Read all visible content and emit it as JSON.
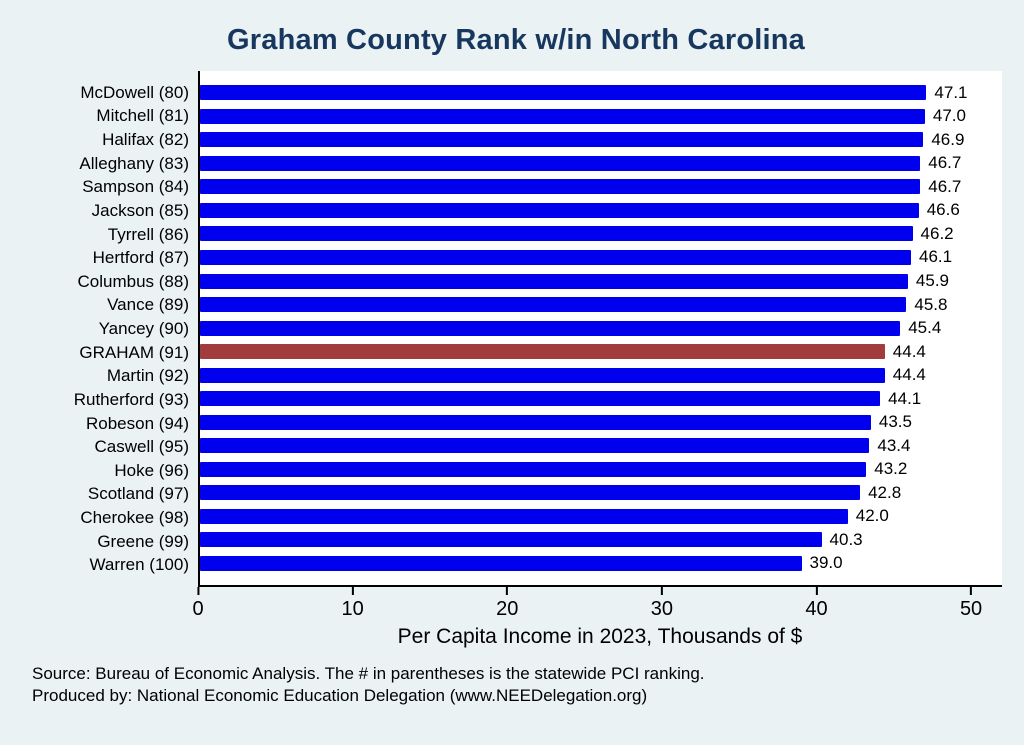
{
  "title": "Graham County Rank w/in North Carolina",
  "footer": {
    "source_line": "Source: Bureau of Economic Analysis. The # in parentheses is the statewide PCI ranking.",
    "produced_line": "Produced by: National Economic Education Delegation (www.NEEDelegation.org)"
  },
  "colors": {
    "background": "#eaf2f3",
    "plot_background": "#ffffff",
    "title": "#17375e",
    "bar": "#0000ee",
    "highlight_bar": "#a23b3b",
    "axis": "#000000"
  },
  "chart_data": {
    "type": "bar",
    "orientation": "horizontal",
    "title": "Graham County Rank w/in North Carolina",
    "categories": [
      "McDowell (80)",
      "Mitchell (81)",
      "Halifax (82)",
      "Alleghany (83)",
      "Sampson (84)",
      "Jackson (85)",
      "Tyrrell (86)",
      "Hertford (87)",
      "Columbus (88)",
      "Vance (89)",
      "Yancey (90)",
      "GRAHAM (91)",
      "Martin (92)",
      "Rutherford (93)",
      "Robeson (94)",
      "Caswell (95)",
      "Hoke (96)",
      "Scotland (97)",
      "Cherokee (98)",
      "Greene (99)",
      "Warren (100)"
    ],
    "values": [
      47.1,
      47.0,
      46.9,
      46.7,
      46.7,
      46.6,
      46.2,
      46.1,
      45.9,
      45.8,
      45.4,
      44.4,
      44.4,
      44.1,
      43.5,
      43.4,
      43.2,
      42.8,
      42.0,
      40.3,
      39.0
    ],
    "highlight_index": 11,
    "highlight_category": "GRAHAM (91)",
    "xlabel": "Per Capita Income in 2023, Thousands of $",
    "ylabel": "",
    "xlim": [
      0,
      52
    ],
    "xticks": [
      0,
      10,
      20,
      30,
      40,
      50
    ],
    "grid": false,
    "legend": "none",
    "bar_color": "#0000ee",
    "highlight_color": "#a23b3b"
  }
}
